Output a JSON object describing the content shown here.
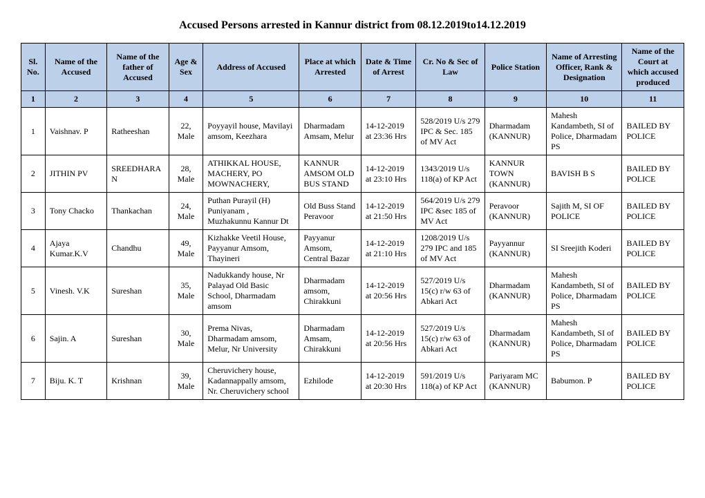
{
  "title": "Accused Persons arrested in   Kannur   district from   08.12.2019to14.12.2019",
  "table": {
    "header_bg": "#bdd0e9",
    "border_color": "#000000",
    "font_family": "Times New Roman",
    "header_fontsize": 12,
    "cell_fontsize": 12,
    "columns": [
      "Sl. No.",
      "Name of the Accused",
      "Name of the father of Accused",
      "Age & Sex",
      "Address of Accused",
      "Place at which Arrested",
      "Date & Time of Arrest",
      "Cr. No & Sec of Law",
      "Police Station",
      "Name of Arresting Officer, Rank & Designation",
      "Name of the Court at which accused produced"
    ],
    "col_numbers": [
      "1",
      "2",
      "3",
      "4",
      "5",
      "6",
      "7",
      "8",
      "9",
      "10",
      "11"
    ],
    "rows": [
      {
        "sl": "1",
        "name": "Vaishnav. P",
        "father": "Ratheeshan",
        "age_sex": "22, Male",
        "address": "Poyyayil house, Mavilayi amsom, Keezhara",
        "place": "Dharmadam Amsam, Melur",
        "datetime": "14-12-2019 at 23:36 Hrs",
        "crno": "528/2019 U/s 279 IPC & Sec. 185 of MV Act",
        "station": "Dharmadam (KANNUR)",
        "officer": "Mahesh Kandambeth, SI of Police, Dharmadam PS",
        "court": "BAILED BY POLICE"
      },
      {
        "sl": "2",
        "name": "JITHIN PV",
        "father": "SREEDHARAN",
        "age_sex": "28, Male",
        "address": "ATHIKKAL HOUSE, MACHERY, PO MOWNACHERY,",
        "place": "KANNUR AMSOM OLD BUS STAND",
        "datetime": "14-12-2019 at 23:10 Hrs",
        "crno": "1343/2019 U/s 118(a) of KP Act",
        "station": "KANNUR TOWN (KANNUR)",
        "officer": "BAVISH B S",
        "court": "BAILED BY POLICE"
      },
      {
        "sl": "3",
        "name": "Tony Chacko",
        "father": "Thankachan",
        "age_sex": "24, Male",
        "address": "Puthan Purayil (H) Puniyanam , Muzhakunnu Kannur Dt",
        "place": "Old Buss Stand Peravoor",
        "datetime": "14-12-2019 at 21:50 Hrs",
        "crno": "564/2019 U/s 279 IPC &sec 185 of MV Act",
        "station": "Peravoor (KANNUR)",
        "officer": "Sajith M, SI OF POLICE",
        "court": "BAILED BY POLICE"
      },
      {
        "sl": "4",
        "name": "Ajaya Kumar.K.V",
        "father": "Chandhu",
        "age_sex": "49, Male",
        "address": "Kizhakke Veetil House, Payyanur Amsom, Thayineri",
        "place": "Payyanur Amsom, Central Bazar",
        "datetime": "14-12-2019 at 21:10 Hrs",
        "crno": "1208/2019 U/s 279 IPC and 185 of MV Act",
        "station": "Payyannur (KANNUR)",
        "officer": "SI Sreejith Koderi",
        "court": "BAILED BY POLICE"
      },
      {
        "sl": "5",
        "name": "Vinesh. V.K",
        "father": "Sureshan",
        "age_sex": "35, Male",
        "address": "Nadukkandy house, Nr Palayad Old Basic School, Dharmadam amsom",
        "place": "Dharmadam amsom, Chirakkuni",
        "datetime": "14-12-2019 at 20:56 Hrs",
        "crno": "527/2019 U/s 15(c) r/w 63 of Abkari Act",
        "station": "Dharmadam (KANNUR)",
        "officer": "Mahesh Kandambeth, SI of Police, Dharmadam PS",
        "court": "BAILED BY POLICE"
      },
      {
        "sl": "6",
        "name": "Sajin. A",
        "father": "Sureshan",
        "age_sex": "30, Male",
        "address": "Prema Nivas, Dharmadam amsom, Melur, Nr University",
        "place": "Dharmadam Amsam, Chirakkuni",
        "datetime": "14-12-2019 at 20:56 Hrs",
        "crno": "527/2019 U/s 15(c) r/w 63 of Abkari Act",
        "station": "Dharmadam (KANNUR)",
        "officer": "Mahesh Kandambeth, SI of Police, Dharmadam PS",
        "court": "BAILED BY POLICE"
      },
      {
        "sl": "7",
        "name": "Biju. K. T",
        "father": "Krishnan",
        "age_sex": "39, Male",
        "address": "Cheruvichery house, Kadannappally amsom, Nr. Cheruvichery school",
        "place": "Ezhilode",
        "datetime": "14-12-2019 at 20:30 Hrs",
        "crno": "591/2019 U/s 118(a) of KP Act",
        "station": "Pariyaram MC (KANNUR)",
        "officer": "Babumon. P",
        "court": "BAILED BY POLICE"
      }
    ]
  }
}
